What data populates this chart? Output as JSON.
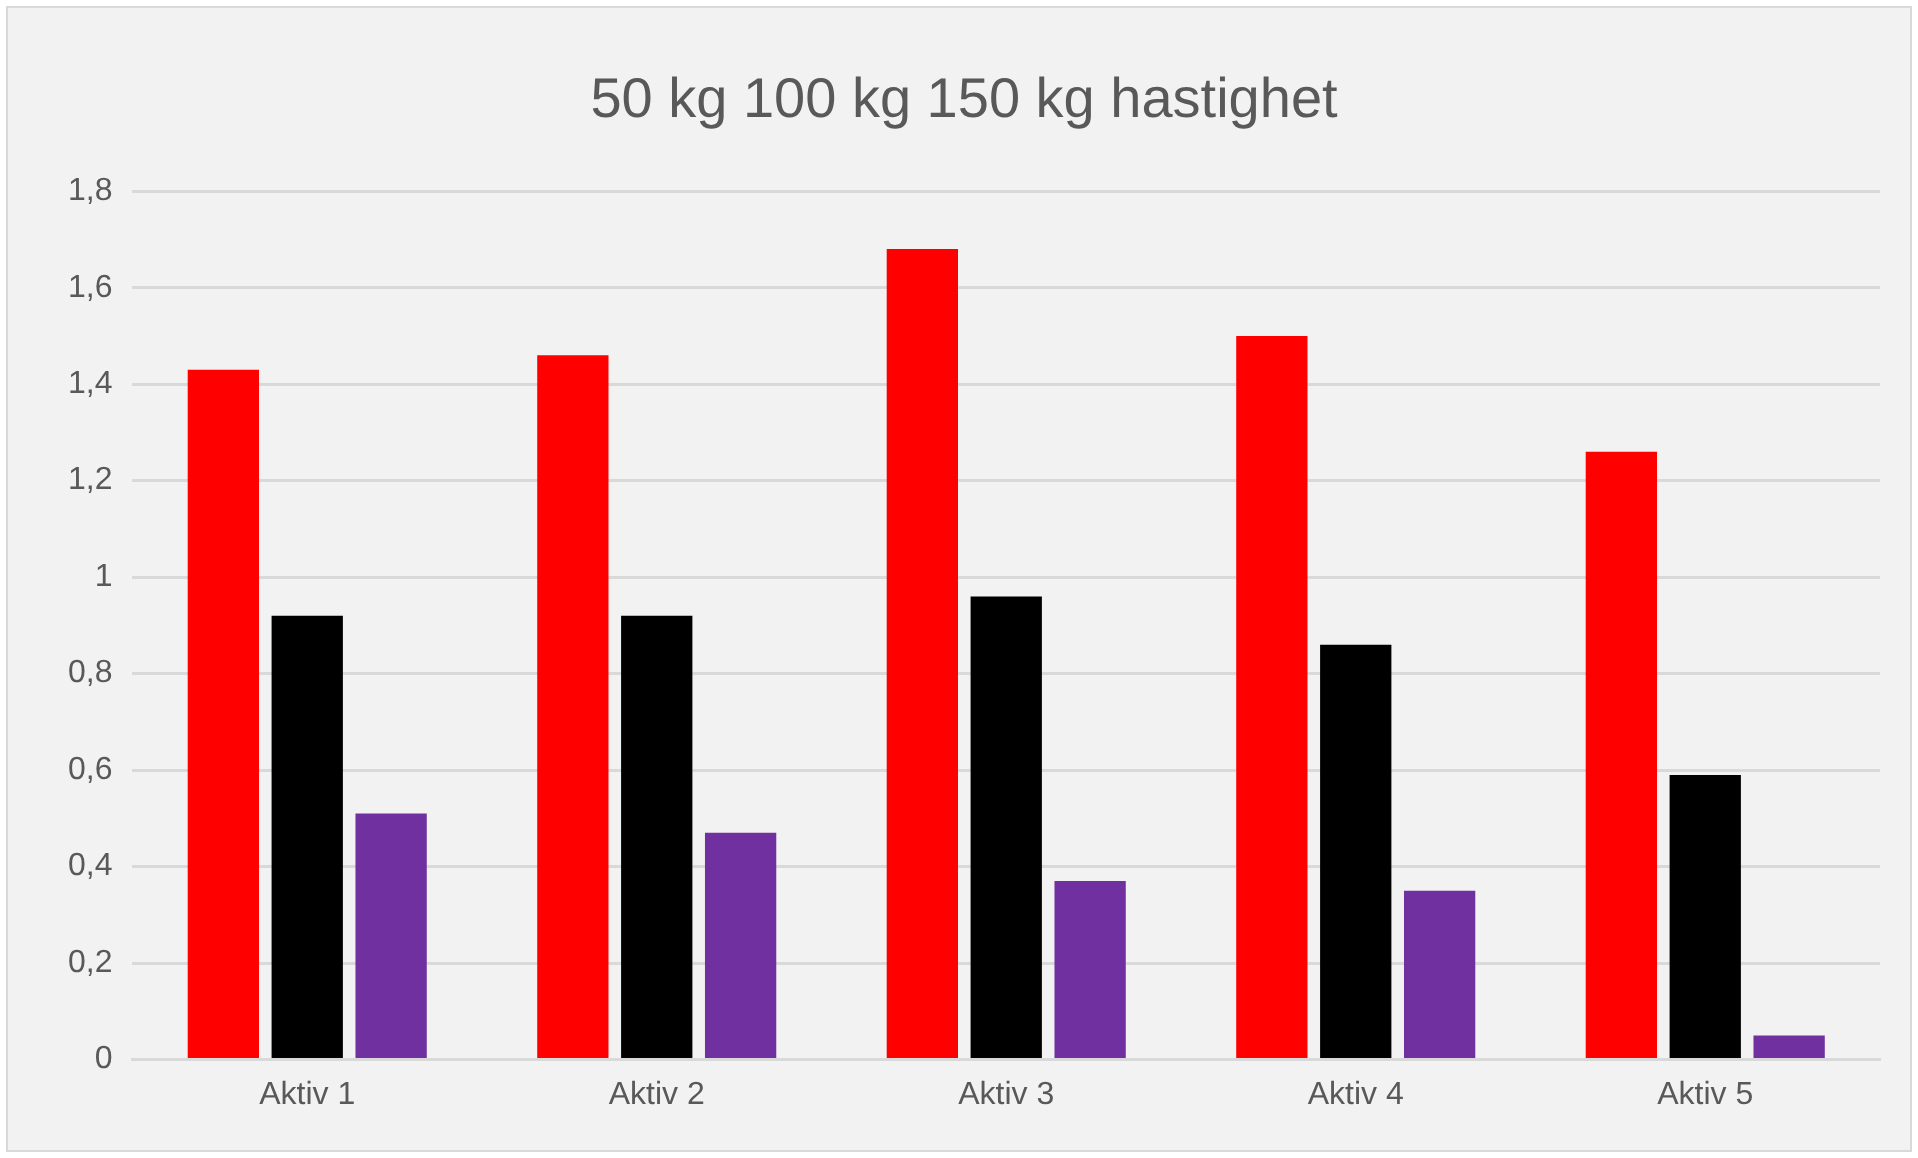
{
  "chart_data": {
    "type": "bar",
    "title": "50 kg 100 kg 150 kg hastighet",
    "categories": [
      "Aktiv 1",
      "Aktiv 2",
      "Aktiv 3",
      "Aktiv 4",
      "Aktiv 5"
    ],
    "series": [
      {
        "color": "#ff0000",
        "values": [
          1.43,
          1.46,
          1.68,
          1.5,
          1.26
        ]
      },
      {
        "color": "#000000",
        "values": [
          0.92,
          0.92,
          0.96,
          0.86,
          0.59
        ]
      },
      {
        "color": "#7030a0",
        "values": [
          0.51,
          0.47,
          0.37,
          0.35,
          0.05
        ]
      }
    ],
    "ylim": [
      0,
      1.8
    ],
    "yticks": [
      {
        "value": 0,
        "label": "0"
      },
      {
        "value": 0.2,
        "label": "0,2"
      },
      {
        "value": 0.4,
        "label": "0,4"
      },
      {
        "value": 0.6,
        "label": "0,6"
      },
      {
        "value": 0.8,
        "label": "0,8"
      },
      {
        "value": 1,
        "label": "1"
      },
      {
        "value": 1.2,
        "label": "1,2"
      },
      {
        "value": 1.4,
        "label": "1,4"
      },
      {
        "value": 1.6,
        "label": "1,6"
      },
      {
        "value": 1.8,
        "label": "1,8"
      }
    ],
    "grid": "y",
    "legend": false
  }
}
